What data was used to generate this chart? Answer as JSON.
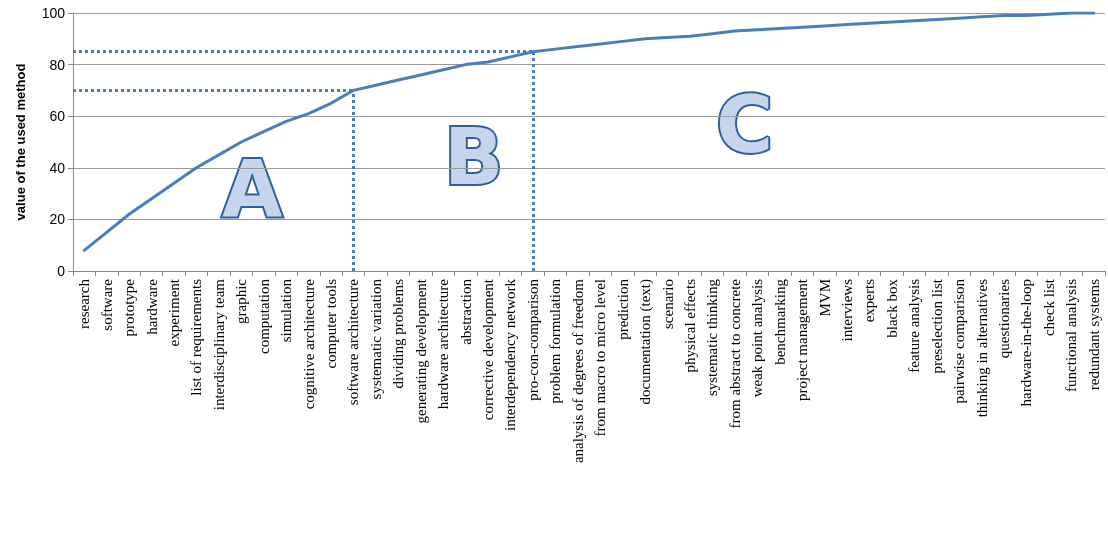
{
  "chart_data": {
    "type": "line",
    "ylabel": "value of the used method",
    "categories": [
      "research",
      "software",
      "prototype",
      "hardware",
      "experiment",
      "list of requirements",
      "interdisciplinary team",
      "graphic",
      "computation",
      "simulation",
      "cognitive architecture",
      "computer tools",
      "software architecture",
      "systematic variation",
      "dividing problems",
      "generating development",
      "hardware architecture",
      "abstraction",
      "corrective development",
      "interdependency network",
      "pro-con-comparison",
      "problem formulation",
      "analysis of degrees of freedom",
      "from macro to micro level",
      "prediction",
      "documentation (text)",
      "scenario",
      "physical effects",
      "systematic thinking",
      "from abstract to concrete",
      "weak point analysis",
      "benchmarking",
      "project management",
      "MVM",
      "interviews",
      "experts",
      "black box",
      "feature analysis",
      "preselection list",
      "pairwise comparison",
      "thinking in alternatives",
      "questionaries",
      "hardware-in-the-loop",
      "check list",
      "functional analysis",
      "redundant systems"
    ],
    "series": [
      {
        "color": "#4a7ebb",
        "values": [
          8,
          15,
          22,
          28,
          34,
          40,
          45,
          50,
          54,
          58,
          61,
          65,
          70,
          72,
          74,
          76,
          78,
          80,
          81,
          83,
          85,
          86,
          87,
          88,
          89,
          90,
          90.5,
          91,
          92,
          93,
          93.5,
          94,
          94.5,
          95,
          95.5,
          96,
          96.5,
          97,
          97.5,
          98,
          98.5,
          99,
          99,
          99.5,
          100,
          100
        ]
      }
    ],
    "ylim": [
      0,
      100
    ],
    "yticks": [
      0,
      20,
      40,
      60,
      80,
      100
    ],
    "grid": "y",
    "marker": "none",
    "line_style": "solid",
    "ref_lines": [
      {
        "axis": "y",
        "value": 70,
        "color": "#4a7ebb",
        "line_style": "dotted"
      },
      {
        "axis": "y",
        "value": 85,
        "color": "#4a7ebb",
        "line_style": "dotted"
      },
      {
        "axis": "x",
        "value": "software architecture",
        "color": "#4a7ebb",
        "line_style": "dotted"
      },
      {
        "axis": "x",
        "value": "pro-con-comparison",
        "color": "#4a7ebb",
        "line_style": "dotted"
      }
    ],
    "annotations": [
      "A",
      "B",
      "C"
    ]
  }
}
